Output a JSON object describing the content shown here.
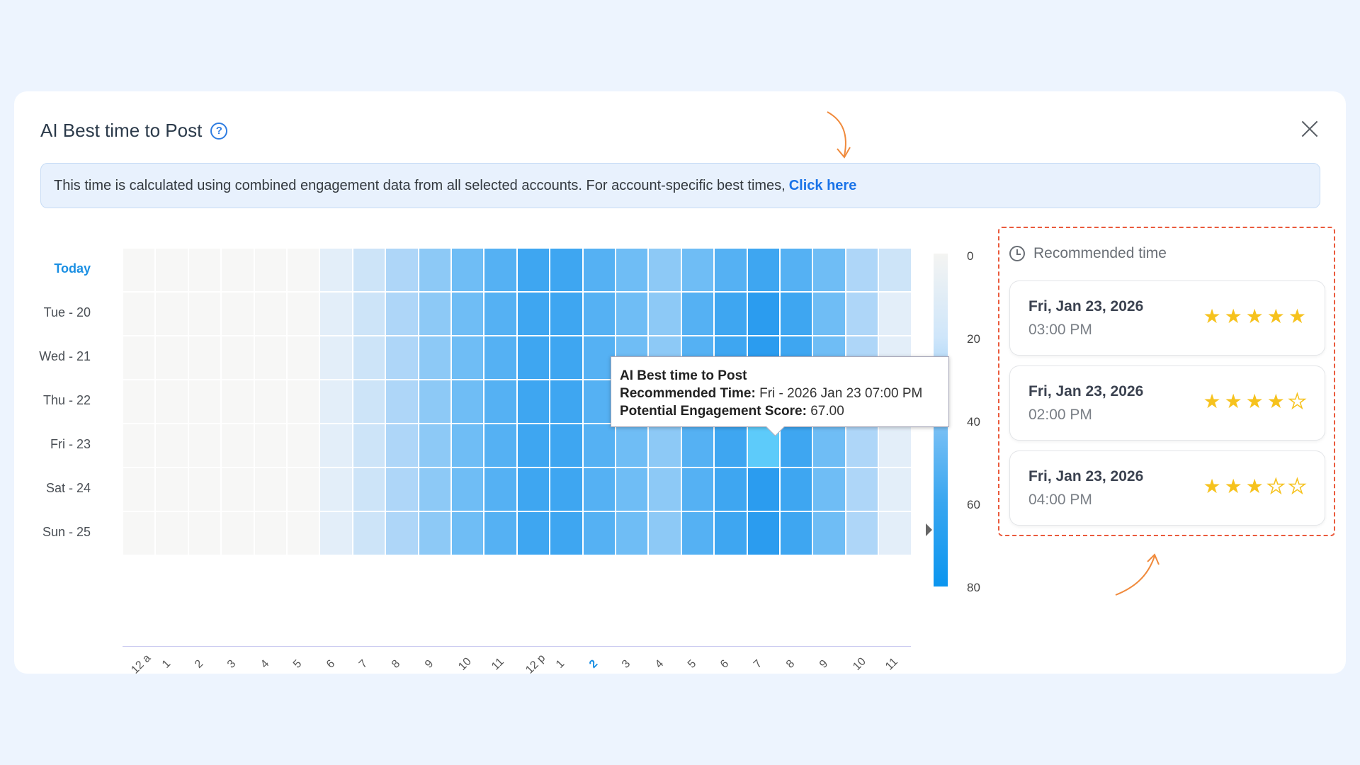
{
  "title": "AI Best time to Post",
  "banner": {
    "text": "This time is calculated using combined engagement data from all selected accounts. For account-specific best times,",
    "link": "Click here"
  },
  "heatmap": {
    "rows": [
      "Today",
      "Tue - 20",
      "Wed - 21",
      "Thu - 22",
      "Fri - 23",
      "Sat - 24",
      "Sun - 25"
    ],
    "hours": [
      "12 a",
      "1",
      "2",
      "3",
      "4",
      "5",
      "6",
      "7",
      "8",
      "9",
      "10",
      "11",
      "12 p",
      "1",
      "2",
      "3",
      "4",
      "5",
      "6",
      "7",
      "8",
      "9",
      "10",
      "11"
    ],
    "current_hour_index": 14,
    "scale_ticks": [
      "0",
      "20",
      "40",
      "60",
      "80"
    ],
    "colors": [
      "#f7f7f6",
      "#e3eef9",
      "#cde4f8",
      "#aed6f8",
      "#8dc9f6",
      "#6fbdf5",
      "#55b1f3",
      "#3ea6f1",
      "#2b9cef"
    ],
    "levels": [
      [
        0,
        0,
        0,
        0,
        0,
        0,
        1,
        2,
        3,
        4,
        5,
        6,
        7,
        7,
        6,
        5,
        4,
        5,
        6,
        7,
        6,
        5,
        3,
        2
      ],
      [
        0,
        0,
        0,
        0,
        0,
        0,
        1,
        2,
        3,
        4,
        5,
        6,
        7,
        7,
        6,
        5,
        4,
        6,
        7,
        8,
        7,
        5,
        3,
        1
      ],
      [
        0,
        0,
        0,
        0,
        0,
        0,
        1,
        2,
        3,
        4,
        5,
        6,
        7,
        7,
        6,
        5,
        4,
        6,
        7,
        8,
        7,
        5,
        3,
        1
      ],
      [
        0,
        0,
        0,
        0,
        0,
        0,
        1,
        2,
        3,
        4,
        5,
        6,
        7,
        7,
        6,
        5,
        4,
        6,
        7,
        8,
        7,
        5,
        3,
        1
      ],
      [
        0,
        0,
        0,
        0,
        0,
        0,
        1,
        2,
        3,
        4,
        5,
        6,
        7,
        7,
        6,
        5,
        4,
        6,
        7,
        8,
        7,
        5,
        3,
        1
      ],
      [
        0,
        0,
        0,
        0,
        0,
        0,
        1,
        2,
        3,
        4,
        5,
        6,
        7,
        7,
        6,
        5,
        4,
        6,
        7,
        8,
        7,
        5,
        3,
        1
      ],
      [
        0,
        0,
        0,
        0,
        0,
        0,
        1,
        2,
        3,
        4,
        5,
        6,
        7,
        7,
        6,
        5,
        4,
        6,
        7,
        8,
        7,
        5,
        3,
        1
      ]
    ],
    "highlighted": {
      "row": 4,
      "col": 19
    }
  },
  "tooltip": {
    "title": "AI Best time to Post",
    "rec_label": "Recommended Time:",
    "rec_value": "Fri - 2026 Jan 23 07:00 PM",
    "score_label": "Potential Engagement Score:",
    "score_value": "67.00"
  },
  "recommended": {
    "heading": "Recommended time",
    "items": [
      {
        "date": "Fri, Jan 23, 2026",
        "time": "03:00 PM",
        "stars": 5
      },
      {
        "date": "Fri, Jan 23, 2026",
        "time": "02:00 PM",
        "stars": 4
      },
      {
        "date": "Fri, Jan 23, 2026",
        "time": "04:00 PM",
        "stars": 3
      }
    ]
  }
}
